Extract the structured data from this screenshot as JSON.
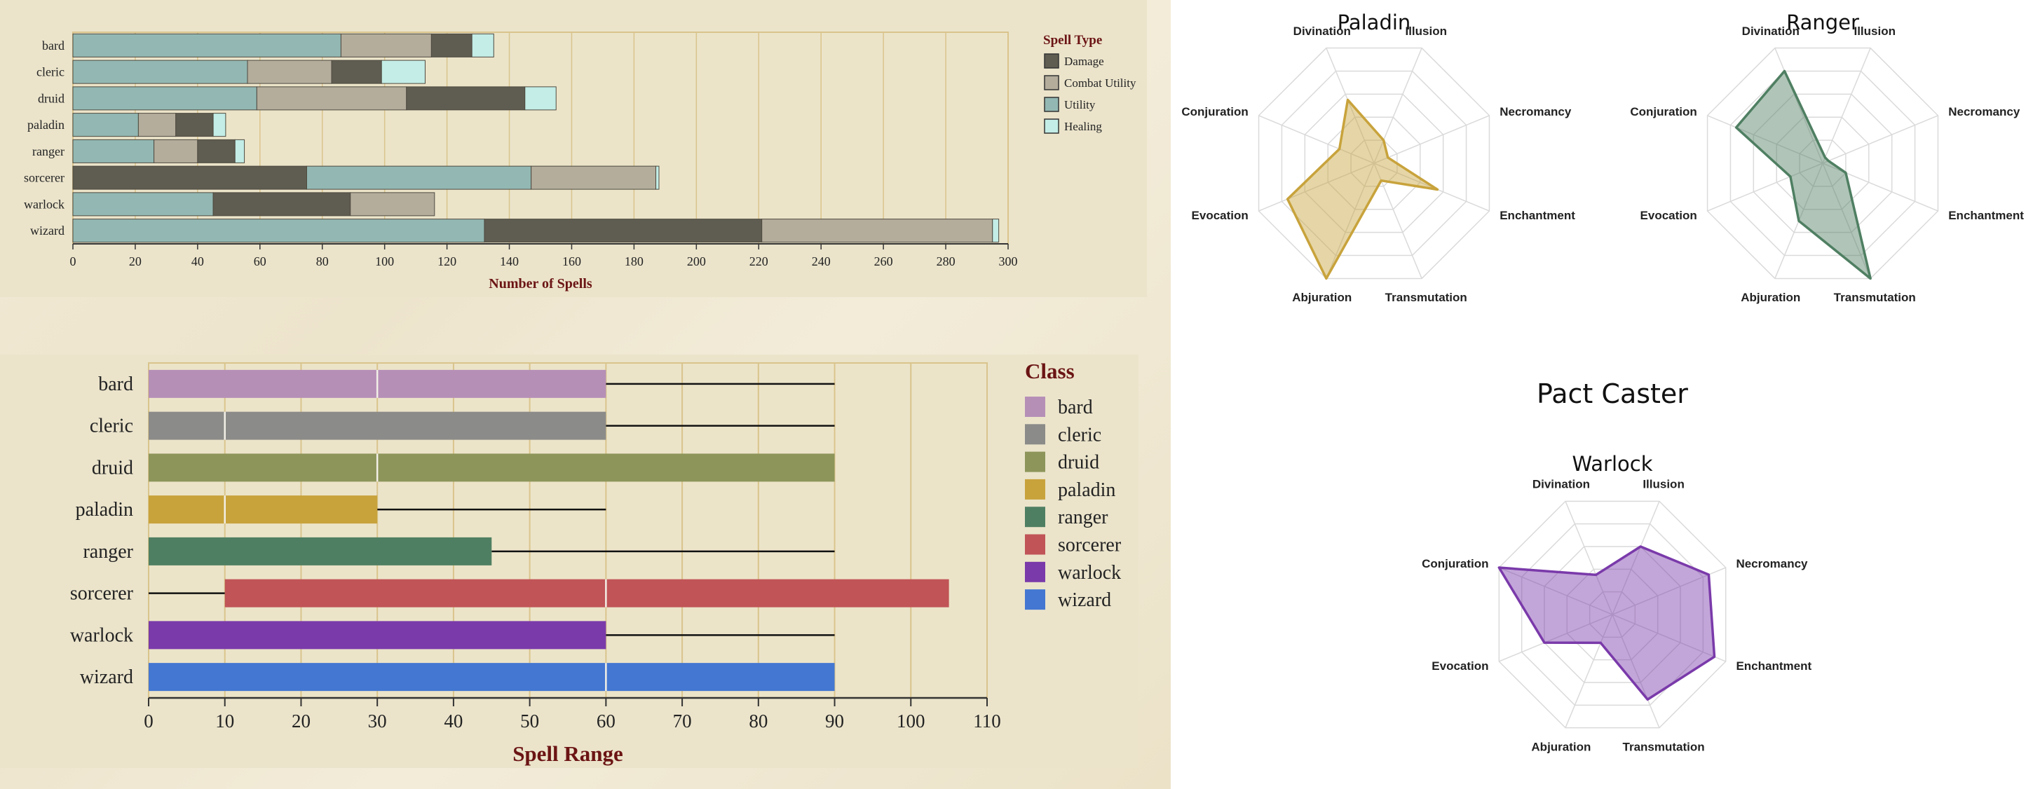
{
  "colors": {
    "damage": "#5f5c51",
    "combat_utility": "#b4ad9c",
    "utility": "#93b8b3",
    "healing": "#c3ede6",
    "bard": "#b68fb7",
    "cleric": "#8b8b89",
    "druid": "#8d955a",
    "paladin": "#c8a33c",
    "ranger": "#4f7f62",
    "sorcerer": "#c05457",
    "warlock": "#7a3aaa",
    "wizard": "#4377d2",
    "grid": "#d9c48c",
    "title_red": "#6b1414"
  },
  "chart_data": [
    {
      "type": "bar",
      "orientation": "horizontal",
      "stacked": true,
      "categories": [
        "bard",
        "cleric",
        "druid",
        "paladin",
        "ranger",
        "sorcerer",
        "warlock",
        "wizard"
      ],
      "series": [
        {
          "name": "Utility",
          "color_key": "utility",
          "values": [
            86,
            56,
            59,
            21,
            26,
            0,
            45,
            132
          ]
        },
        {
          "name": "Damage",
          "color_key": "damage",
          "values": [
            0,
            0,
            0,
            0,
            0,
            75,
            0,
            0
          ]
        },
        {
          "name": "Utility",
          "color_key": "utility",
          "values": [
            0,
            0,
            0,
            0,
            0,
            72,
            0,
            0
          ]
        },
        {
          "name": "Combat Utility",
          "color_key": "combat_utility",
          "values": [
            29,
            27,
            48,
            12,
            14,
            40,
            0,
            0
          ]
        },
        {
          "name": "Damage",
          "color_key": "damage",
          "values": [
            13,
            16,
            38,
            12,
            12,
            0,
            44,
            89
          ]
        },
        {
          "name": "Combat Utility",
          "color_key": "combat_utility",
          "values": [
            0,
            0,
            0,
            0,
            0,
            0,
            27,
            74
          ]
        },
        {
          "name": "Healing",
          "color_key": "healing",
          "values": [
            7,
            14,
            10,
            4,
            3,
            1,
            0,
            2
          ]
        }
      ],
      "xlabel": "Number of Spells",
      "xlim": [
        0,
        300
      ],
      "xticks": [
        0,
        20,
        40,
        60,
        80,
        100,
        120,
        140,
        160,
        180,
        200,
        220,
        240,
        260,
        280,
        300
      ],
      "grid": true,
      "legend": {
        "title": "Spell Type",
        "placement": "right",
        "entries": [
          {
            "name": "Damage",
            "color_key": "damage"
          },
          {
            "name": "Combat Utility",
            "color_key": "combat_utility"
          },
          {
            "name": "Utility",
            "color_key": "utility"
          },
          {
            "name": "Healing",
            "color_key": "healing"
          }
        ]
      }
    },
    {
      "type": "bar",
      "orientation": "horizontal",
      "categories": [
        "bard",
        "cleric",
        "druid",
        "paladin",
        "ranger",
        "sorcerer",
        "warlock",
        "wizard"
      ],
      "color_keys": [
        "bard",
        "cleric",
        "druid",
        "paladin",
        "ranger",
        "sorcerer",
        "warlock",
        "wizard"
      ],
      "bars": [
        {
          "start": 0,
          "end": 60,
          "whisker_to": 90,
          "divider": 30
        },
        {
          "start": 0,
          "end": 60,
          "whisker_to": 90,
          "divider": 10
        },
        {
          "start": 0,
          "end": 90,
          "divider": 30
        },
        {
          "start": 0,
          "end": 30,
          "whisker_to": 60,
          "divider": 10
        },
        {
          "start": 0,
          "end": 45,
          "whisker_to": 90
        },
        {
          "start": 10,
          "end": 105,
          "whisker_from": 0,
          "divider": 60
        },
        {
          "start": 0,
          "end": 60,
          "whisker_to": 90
        },
        {
          "start": 0,
          "end": 90,
          "divider": 60
        }
      ],
      "xlabel": "Spell Range",
      "xlim": [
        0,
        110
      ],
      "xticks": [
        0,
        10,
        20,
        30,
        40,
        50,
        60,
        70,
        80,
        90,
        100,
        110
      ],
      "grid": true,
      "legend": {
        "title": "Class",
        "placement": "right",
        "entries": [
          "bard",
          "cleric",
          "druid",
          "paladin",
          "ranger",
          "sorcerer",
          "warlock",
          "wizard"
        ]
      }
    },
    {
      "type": "radar",
      "title": "Paladin",
      "color_key": "paladin",
      "axes": [
        "Divination",
        "Illusion",
        "Necromancy",
        "Enchantment",
        "Transmutation",
        "Abjuration",
        "Evocation",
        "Conjuration"
      ],
      "values": [
        0.55,
        0.2,
        0.12,
        0.55,
        0.15,
        1.0,
        0.75,
        0.3
      ],
      "max": 1
    },
    {
      "type": "radar",
      "title": "Ranger",
      "color_key": "ranger",
      "axes": [
        "Divination",
        "Illusion",
        "Necromancy",
        "Enchantment",
        "Transmutation",
        "Abjuration",
        "Evocation",
        "Conjuration"
      ],
      "values": [
        0.8,
        0.05,
        0.05,
        0.2,
        1.0,
        0.5,
        0.28,
        0.75
      ],
      "max": 1
    },
    {
      "type": "radar",
      "title": "Warlock",
      "color_key": "warlock",
      "axes": [
        "Divination",
        "Illusion",
        "Necromancy",
        "Enchantment",
        "Transmutation",
        "Abjuration",
        "Evocation",
        "Conjuration"
      ],
      "values": [
        0.35,
        0.6,
        0.85,
        0.9,
        0.75,
        0.25,
        0.6,
        1.0
      ],
      "max": 1
    }
  ],
  "pact_section_title": "Pact Caster"
}
